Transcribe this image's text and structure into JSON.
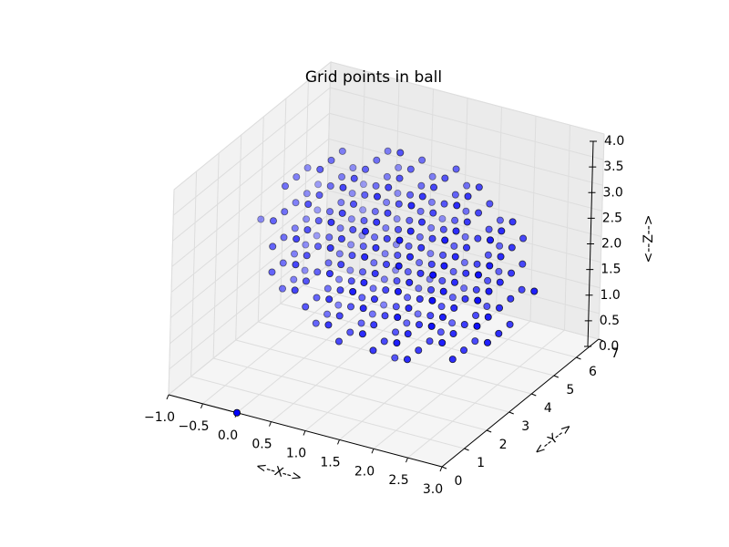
{
  "chart_data": {
    "type": "scatter3d",
    "title": "Grid points in ball",
    "x_label": "<--X-->",
    "y_label": "<--Y-->",
    "z_label": "<--Z-->",
    "color": "#0000ff",
    "grid": true,
    "xlim": [
      -1,
      3
    ],
    "ylim": [
      0,
      7
    ],
    "zlim": [
      0,
      4
    ],
    "xticks": [
      {
        "value": -1,
        "label": "−1.0"
      },
      {
        "value": -0.5,
        "label": "−0.5"
      },
      {
        "value": 0,
        "label": "0.0"
      },
      {
        "value": 0.5,
        "label": "0.5"
      },
      {
        "value": 1,
        "label": "1.0"
      },
      {
        "value": 1.5,
        "label": "1.5"
      },
      {
        "value": 2,
        "label": "2.0"
      },
      {
        "value": 2.5,
        "label": "2.5"
      },
      {
        "value": 3,
        "label": "3.0"
      }
    ],
    "yticks": [
      0,
      1,
      2,
      3,
      4,
      5,
      6,
      7
    ],
    "zticks": [
      {
        "value": 0,
        "label": "0.0"
      },
      {
        "value": 0.5,
        "label": "0.5"
      },
      {
        "value": 1,
        "label": "1.0"
      },
      {
        "value": 1.5,
        "label": "1.5"
      },
      {
        "value": 2,
        "label": "2.0"
      },
      {
        "value": 2.5,
        "label": "2.5"
      },
      {
        "value": 3,
        "label": "3.0"
      },
      {
        "value": 3.5,
        "label": "3.5"
      },
      {
        "value": 4,
        "label": "4.0"
      }
    ],
    "columns": [
      {
        "x": 0,
        "y": 0,
        "z": [
          0
        ]
      },
      {
        "x": -1,
        "y": 4,
        "z": [
          2
        ]
      },
      {
        "x": -0.5,
        "y": 3,
        "z": [
          1.5,
          2,
          2.5
        ]
      },
      {
        "x": -0.5,
        "y": 3.5,
        "z": [
          1,
          1.5,
          2,
          2.5,
          3
        ]
      },
      {
        "x": -0.5,
        "y": 4,
        "z": [
          1,
          1.5,
          2,
          2.5,
          3
        ]
      },
      {
        "x": -0.5,
        "y": 4.5,
        "z": [
          1,
          1.5,
          2,
          2.5,
          3
        ]
      },
      {
        "x": -0.5,
        "y": 5,
        "z": [
          1.5,
          2,
          2.5
        ]
      },
      {
        "x": 0,
        "y": 2.5,
        "z": [
          1.5,
          2,
          2.5
        ]
      },
      {
        "x": 0,
        "y": 3,
        "z": [
          1,
          1.5,
          2,
          2.5,
          3
        ]
      },
      {
        "x": 0,
        "y": 3.5,
        "z": [
          0.5,
          1,
          1.5,
          2,
          2.5,
          3,
          3.5
        ]
      },
      {
        "x": 0,
        "y": 4,
        "z": [
          0.5,
          1,
          1.5,
          2,
          2.5,
          3,
          3.5
        ]
      },
      {
        "x": 0,
        "y": 4.5,
        "z": [
          0.5,
          1,
          1.5,
          2,
          2.5,
          3,
          3.5
        ]
      },
      {
        "x": 0,
        "y": 5,
        "z": [
          1,
          1.5,
          2,
          2.5,
          3
        ]
      },
      {
        "x": 0,
        "y": 5.5,
        "z": [
          1.5,
          2,
          2.5
        ]
      },
      {
        "x": 0.5,
        "y": 2.5,
        "z": [
          1,
          1.5,
          2,
          2.5,
          3
        ]
      },
      {
        "x": 0.5,
        "y": 3,
        "z": [
          0.5,
          1,
          1.5,
          2,
          2.5,
          3,
          3.5
        ]
      },
      {
        "x": 0.5,
        "y": 3.5,
        "z": [
          0.5,
          1,
          1.5,
          2,
          2.5,
          3,
          3.5
        ]
      },
      {
        "x": 0.5,
        "y": 4,
        "z": [
          0.5,
          1,
          1.5,
          2,
          2.5,
          3,
          3.5
        ]
      },
      {
        "x": 0.5,
        "y": 4.5,
        "z": [
          0.5,
          1,
          1.5,
          2,
          2.5,
          3,
          3.5
        ]
      },
      {
        "x": 0.5,
        "y": 5,
        "z": [
          0.5,
          1,
          1.5,
          2,
          2.5,
          3,
          3.5
        ]
      },
      {
        "x": 0.5,
        "y": 5.5,
        "z": [
          1,
          1.5,
          2,
          2.5,
          3
        ]
      },
      {
        "x": 1,
        "y": 2,
        "z": [
          2
        ]
      },
      {
        "x": 1,
        "y": 2.5,
        "z": [
          1,
          1.5,
          2,
          2.5,
          3
        ]
      },
      {
        "x": 1,
        "y": 3,
        "z": [
          0.5,
          1,
          1.5,
          2,
          2.5,
          3,
          3.5
        ]
      },
      {
        "x": 1,
        "y": 3.5,
        "z": [
          0.5,
          1,
          1.5,
          2,
          2.5,
          3,
          3.5
        ]
      },
      {
        "x": 1,
        "y": 4,
        "z": [
          0,
          0.5,
          1,
          1.5,
          2,
          2.5,
          3,
          3.5,
          4
        ]
      },
      {
        "x": 1,
        "y": 4.5,
        "z": [
          0.5,
          1,
          1.5,
          2,
          2.5,
          3,
          3.5
        ]
      },
      {
        "x": 1,
        "y": 5,
        "z": [
          0.5,
          1,
          1.5,
          2,
          2.5,
          3,
          3.5
        ]
      },
      {
        "x": 1,
        "y": 5.5,
        "z": [
          1,
          1.5,
          2,
          2.5,
          3
        ]
      },
      {
        "x": 1,
        "y": 6,
        "z": [
          2
        ]
      },
      {
        "x": 1.5,
        "y": 2.5,
        "z": [
          1,
          1.5,
          2,
          2.5,
          3
        ]
      },
      {
        "x": 1.5,
        "y": 3,
        "z": [
          0.5,
          1,
          1.5,
          2,
          2.5,
          3,
          3.5
        ]
      },
      {
        "x": 1.5,
        "y": 3.5,
        "z": [
          0.5,
          1,
          1.5,
          2,
          2.5,
          3,
          3.5
        ]
      },
      {
        "x": 1.5,
        "y": 4,
        "z": [
          0.5,
          1,
          1.5,
          2,
          2.5,
          3,
          3.5
        ]
      },
      {
        "x": 1.5,
        "y": 4.5,
        "z": [
          0.5,
          1,
          1.5,
          2,
          2.5,
          3,
          3.5
        ]
      },
      {
        "x": 1.5,
        "y": 5,
        "z": [
          0.5,
          1,
          1.5,
          2,
          2.5,
          3,
          3.5
        ]
      },
      {
        "x": 1.5,
        "y": 5.5,
        "z": [
          1,
          1.5,
          2,
          2.5,
          3
        ]
      },
      {
        "x": 2,
        "y": 2.5,
        "z": [
          1.5,
          2,
          2.5
        ]
      },
      {
        "x": 2,
        "y": 3,
        "z": [
          1,
          1.5,
          2,
          2.5,
          3
        ]
      },
      {
        "x": 2,
        "y": 3.5,
        "z": [
          0.5,
          1,
          1.5,
          2,
          2.5,
          3,
          3.5
        ]
      },
      {
        "x": 2,
        "y": 4,
        "z": [
          0.5,
          1,
          1.5,
          2,
          2.5,
          3,
          3.5
        ]
      },
      {
        "x": 2,
        "y": 4.5,
        "z": [
          0.5,
          1,
          1.5,
          2,
          2.5,
          3,
          3.5
        ]
      },
      {
        "x": 2,
        "y": 5,
        "z": [
          1,
          1.5,
          2,
          2.5,
          3
        ]
      },
      {
        "x": 2,
        "y": 5.5,
        "z": [
          1.5,
          2,
          2.5
        ]
      },
      {
        "x": 2.5,
        "y": 3,
        "z": [
          1.5,
          2,
          2.5
        ]
      },
      {
        "x": 2.5,
        "y": 3.5,
        "z": [
          1,
          1.5,
          2,
          2.5,
          3
        ]
      },
      {
        "x": 2.5,
        "y": 4,
        "z": [
          1,
          1.5,
          2,
          2.5,
          3
        ]
      },
      {
        "x": 2.5,
        "y": 4.5,
        "z": [
          1,
          1.5,
          2,
          2.5,
          3
        ]
      },
      {
        "x": 2.5,
        "y": 5,
        "z": [
          1.5,
          2,
          2.5
        ]
      },
      {
        "x": 3,
        "y": 4,
        "z": [
          2
        ]
      }
    ]
  }
}
